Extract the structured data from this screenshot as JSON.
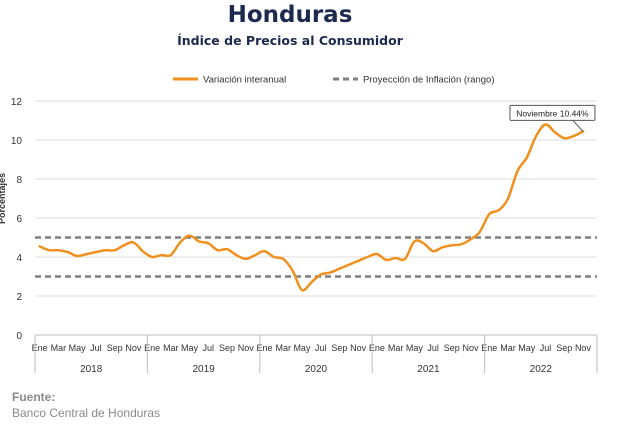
{
  "header": {
    "title": "Honduras",
    "subtitle": "Índice de Precios al Consumidor"
  },
  "source": {
    "label": "Fuente:",
    "value": "Banco Central de Honduras"
  },
  "colors": {
    "series": "#f0901e",
    "projection": "#7f7f7f",
    "title": "#1d2a4f",
    "grid": "#dcdcdc",
    "text": "#333333"
  },
  "chart_data": {
    "type": "line",
    "ylabel": "Porcentajes",
    "ylim": [
      0,
      12
    ],
    "yticks": [
      0,
      2,
      4,
      6,
      8,
      10,
      12
    ],
    "grid": true,
    "legend_position": "top",
    "month_labels": [
      "Ene",
      "Mar",
      "May",
      "Jul",
      "Sep",
      "Nov"
    ],
    "years": [
      "2018",
      "2019",
      "2020",
      "2021",
      "2022"
    ],
    "series": [
      {
        "name": "Variación interanual",
        "values": [
          4.55,
          4.35,
          4.35,
          4.25,
          4.05,
          4.15,
          4.25,
          4.35,
          4.35,
          4.6,
          4.75,
          4.3,
          4.0,
          4.1,
          4.1,
          4.75,
          5.1,
          4.8,
          4.7,
          4.35,
          4.4,
          4.1,
          3.9,
          4.1,
          4.3,
          4.0,
          3.9,
          3.3,
          2.3,
          2.7,
          3.1,
          3.2,
          3.4,
          3.6,
          3.8,
          4.0,
          4.15,
          3.85,
          3.95,
          3.9,
          4.8,
          4.7,
          4.3,
          4.5,
          4.6,
          4.65,
          4.9,
          5.3,
          6.2,
          6.4,
          7.0,
          8.4,
          9.1,
          10.2,
          10.8,
          10.4,
          10.1,
          10.2,
          10.44
        ]
      },
      {
        "name": "Proyección de Inflación (rango)",
        "range": [
          3,
          5
        ]
      }
    ],
    "annotation": {
      "text": "Noviembre 10.44%",
      "index": 58,
      "value": 10.44
    }
  }
}
